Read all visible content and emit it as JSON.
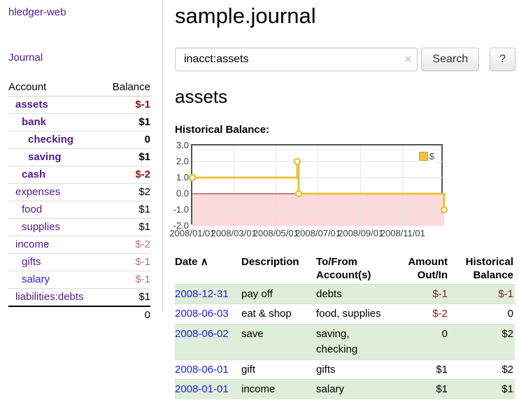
{
  "sidebar": {
    "brand": "hledger-web",
    "nav": {
      "journal": "Journal"
    },
    "accounts_table": {
      "headers": {
        "account": "Account",
        "balance": "Balance"
      },
      "rows": [
        {
          "name": "assets",
          "depth": 1,
          "balance": "$-1",
          "bold": true
        },
        {
          "name": "bank",
          "depth": 2,
          "balance": "$1",
          "bold": true
        },
        {
          "name": "checking",
          "depth": 3,
          "balance": "0",
          "bold": true
        },
        {
          "name": "saving",
          "depth": 3,
          "balance": "$1",
          "bold": true
        },
        {
          "name": "cash",
          "depth": 2,
          "balance": "$-2",
          "bold": true
        },
        {
          "name": "expenses",
          "depth": 1,
          "balance": "$2",
          "bold": false
        },
        {
          "name": "food",
          "depth": 2,
          "balance": "$1",
          "bold": false
        },
        {
          "name": "supplies",
          "depth": 2,
          "balance": "$1",
          "bold": false
        },
        {
          "name": "income",
          "depth": 1,
          "balance": "$-2",
          "bold": false
        },
        {
          "name": "gifts",
          "depth": 2,
          "balance": "$-1",
          "bold": false
        },
        {
          "name": "salary",
          "depth": 2,
          "balance": "$-1",
          "bold": false,
          "link_style": "unvisited"
        },
        {
          "name": "liabilities:debts",
          "depth": 1,
          "balance": "$1",
          "bold": false
        }
      ],
      "total": "0"
    }
  },
  "header": {
    "title": "sample.journal"
  },
  "search": {
    "value": "inacct:assets",
    "clear_icon": "×",
    "button_label": "Search",
    "help_label": "?"
  },
  "account_page": {
    "heading": "assets",
    "chart_label": "Historical Balance:"
  },
  "chart_data": {
    "type": "line",
    "subtype": "step",
    "title": "Historical Balance",
    "series": [
      {
        "name": "$",
        "color": "#ebc13d",
        "points": [
          [
            "2008-01-01",
            1
          ],
          [
            "2008-06-01",
            2
          ],
          [
            "2008-06-03",
            0
          ],
          [
            "2008-12-31",
            -1
          ]
        ]
      }
    ],
    "x_domain": [
      "2008-01-01",
      "2008-12-31"
    ],
    "ylim": [
      -2,
      3
    ],
    "yticks": [
      3.0,
      2.0,
      1.0,
      0.0,
      -1.0,
      -2.0
    ],
    "xticks": [
      "2008/01/01",
      "2008/03/01",
      "2008/05/01",
      "2008/07/01",
      "2008/09/01",
      "2008/11/01"
    ],
    "grid": true,
    "legend_position": "top-right",
    "negative_fill": "#fbdbdb",
    "zero_line_color": "#9e1010"
  },
  "register_table": {
    "headers": {
      "date": "Date",
      "sort_icon": "∧",
      "description": "Description",
      "accounts": "To/From Account(s)",
      "amount": "Amount Out/In",
      "balance": "Historical Balance"
    },
    "rows": [
      {
        "date": "2008-12-31",
        "description": "pay off",
        "accounts": "debts",
        "amount": "$-1",
        "balance": "$-1"
      },
      {
        "date": "2008-06-03",
        "description": "eat & shop",
        "accounts": "food, supplies",
        "amount": "$-2",
        "balance": "0"
      },
      {
        "date": "2008-06-02",
        "description": "save",
        "accounts": "saving, checking",
        "amount": "0",
        "balance": "$2"
      },
      {
        "date": "2008-06-01",
        "description": "gift",
        "accounts": "gifts",
        "amount": "$1",
        "balance": "$2"
      },
      {
        "date": "2008-01-01",
        "description": "income",
        "accounts": "salary",
        "amount": "$1",
        "balance": "$1"
      }
    ]
  },
  "colors": {
    "link_visited": "#551a8b",
    "link_unvisited": "#2222dd",
    "negative": "#8b1a1a",
    "negative_dim": "#b57676",
    "row_green": "#deeed8",
    "series_gold": "#ebc13d"
  }
}
